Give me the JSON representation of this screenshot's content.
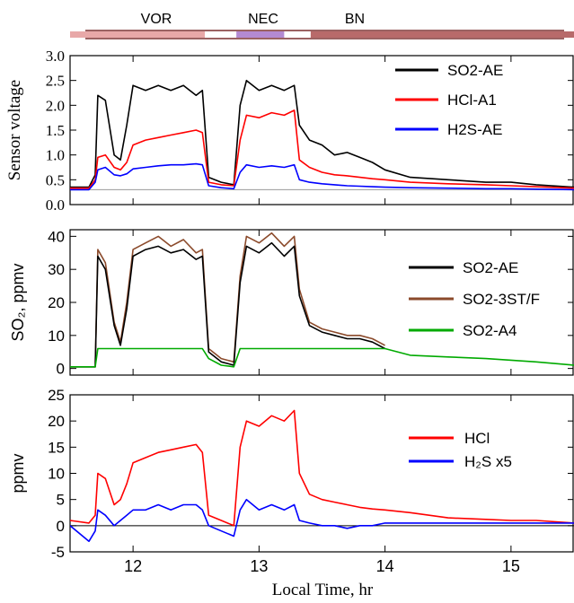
{
  "regions": {
    "labels": [
      "VOR",
      "NEC",
      "BN"
    ],
    "segments": [
      {
        "label": "VOR",
        "from": 11.5,
        "to": 12.57,
        "color": "#e8a8a8"
      },
      {
        "label": "",
        "from": 12.57,
        "to": 12.82,
        "color": "#ffffff"
      },
      {
        "label": "NEC",
        "from": 12.82,
        "to": 13.2,
        "color": "#b48ad2"
      },
      {
        "label": "",
        "from": 13.2,
        "to": 13.41,
        "color": "#ffffff"
      },
      {
        "label": "BN",
        "from": 13.41,
        "to": 15.5,
        "color": "#b86a6a"
      }
    ]
  },
  "chart_data": [
    {
      "type": "line",
      "ylabel": "Sensor voltage",
      "xlim": [
        11.5,
        15.5
      ],
      "ylim": [
        0,
        3.0
      ],
      "yticks": [
        "0.0",
        "0.5",
        "1.0",
        "1.5",
        "2.0",
        "2.5",
        "3.0"
      ],
      "ytick_values": [
        0,
        0.5,
        1.0,
        1.5,
        2.0,
        2.5,
        3.0
      ],
      "reference_line": 0.3,
      "legend_position": "top-right",
      "series": [
        {
          "name": "SO2-AE",
          "color": "#000000",
          "x": [
            11.5,
            11.65,
            11.7,
            11.72,
            11.78,
            11.85,
            11.9,
            11.95,
            12.0,
            12.1,
            12.2,
            12.3,
            12.4,
            12.5,
            12.55,
            12.6,
            12.7,
            12.8,
            12.85,
            12.9,
            13.0,
            13.1,
            13.2,
            13.28,
            13.32,
            13.4,
            13.5,
            13.6,
            13.7,
            13.8,
            13.9,
            14.0,
            14.2,
            14.5,
            14.8,
            15.0,
            15.2,
            15.5
          ],
          "y": [
            0.35,
            0.35,
            0.6,
            2.2,
            2.1,
            1.0,
            0.9,
            1.6,
            2.4,
            2.3,
            2.4,
            2.3,
            2.4,
            2.2,
            2.3,
            0.55,
            0.45,
            0.4,
            2.0,
            2.5,
            2.3,
            2.4,
            2.3,
            2.4,
            1.6,
            1.3,
            1.2,
            1.0,
            1.05,
            0.95,
            0.85,
            0.7,
            0.55,
            0.5,
            0.45,
            0.45,
            0.4,
            0.35
          ]
        },
        {
          "name": "HCl-A1",
          "color": "#ff0000",
          "x": [
            11.5,
            11.65,
            11.7,
            11.72,
            11.78,
            11.85,
            11.9,
            11.95,
            12.0,
            12.1,
            12.2,
            12.3,
            12.4,
            12.5,
            12.55,
            12.6,
            12.7,
            12.8,
            12.85,
            12.9,
            13.0,
            13.1,
            13.2,
            13.28,
            13.32,
            13.4,
            13.5,
            13.6,
            13.7,
            13.8,
            13.9,
            14.0,
            14.2,
            14.5,
            14.8,
            15.0,
            15.2,
            15.5
          ],
          "y": [
            0.33,
            0.33,
            0.5,
            0.95,
            1.0,
            0.75,
            0.7,
            0.85,
            1.2,
            1.3,
            1.35,
            1.4,
            1.45,
            1.5,
            1.45,
            0.45,
            0.4,
            0.38,
            1.3,
            1.8,
            1.75,
            1.85,
            1.8,
            1.9,
            0.9,
            0.75,
            0.65,
            0.6,
            0.58,
            0.55,
            0.52,
            0.5,
            0.45,
            0.42,
            0.4,
            0.38,
            0.36,
            0.33
          ]
        },
        {
          "name": "H2S-AE",
          "color": "#0000ff",
          "x": [
            11.5,
            11.65,
            11.7,
            11.72,
            11.78,
            11.85,
            11.9,
            11.95,
            12.0,
            12.1,
            12.2,
            12.3,
            12.4,
            12.5,
            12.55,
            12.6,
            12.7,
            12.8,
            12.85,
            12.9,
            13.0,
            13.1,
            13.2,
            13.28,
            13.32,
            13.4,
            13.5,
            13.6,
            13.7,
            13.8,
            13.9,
            14.0,
            14.2,
            14.5,
            14.8,
            15.0,
            15.2,
            15.5
          ],
          "y": [
            0.3,
            0.3,
            0.45,
            0.7,
            0.75,
            0.6,
            0.58,
            0.62,
            0.72,
            0.75,
            0.78,
            0.8,
            0.8,
            0.82,
            0.8,
            0.38,
            0.34,
            0.32,
            0.65,
            0.8,
            0.75,
            0.78,
            0.75,
            0.8,
            0.5,
            0.45,
            0.42,
            0.4,
            0.38,
            0.37,
            0.36,
            0.35,
            0.34,
            0.33,
            0.32,
            0.32,
            0.31,
            0.3
          ]
        }
      ]
    },
    {
      "type": "line",
      "ylabel": "SO₂, ppmv",
      "xlim": [
        11.5,
        15.5
      ],
      "ylim": [
        -2,
        42
      ],
      "yticks": [
        "0",
        "10",
        "20",
        "30",
        "40"
      ],
      "ytick_values": [
        0,
        10,
        20,
        30,
        40
      ],
      "legend_position": "right",
      "series": [
        {
          "name": "SO2-3ST/F",
          "color": "#8b4a2b",
          "x": [
            11.5,
            11.7,
            11.72,
            11.78,
            11.85,
            11.9,
            11.95,
            12.0,
            12.1,
            12.2,
            12.3,
            12.4,
            12.5,
            12.55,
            12.6,
            12.7,
            12.8,
            12.85,
            12.9,
            13.0,
            13.1,
            13.2,
            13.28,
            13.32,
            13.4,
            13.5,
            13.6,
            13.7,
            13.8,
            13.9,
            14.0
          ],
          "y": [
            0.5,
            0.5,
            36,
            32,
            14,
            8,
            20,
            36,
            38,
            40,
            37,
            39,
            35,
            36,
            6,
            3,
            2,
            28,
            40,
            38,
            41,
            37,
            40,
            24,
            14,
            12,
            11,
            10,
            10,
            9,
            7
          ]
        },
        {
          "name": "SO2-AE",
          "color": "#000000",
          "x": [
            11.5,
            11.7,
            11.72,
            11.78,
            11.85,
            11.9,
            11.95,
            12.0,
            12.1,
            12.2,
            12.3,
            12.4,
            12.5,
            12.55,
            12.6,
            12.7,
            12.8,
            12.85,
            12.9,
            13.0,
            13.1,
            13.2,
            13.28,
            13.32,
            13.4,
            13.5,
            13.6,
            13.7,
            13.8,
            13.9,
            14.0
          ],
          "y": [
            0.5,
            0.5,
            34,
            30,
            13,
            7,
            18,
            34,
            36,
            37,
            35,
            36,
            33,
            34,
            5,
            2,
            1,
            26,
            37,
            35,
            38,
            34,
            37,
            22,
            13,
            11,
            10,
            9,
            9,
            8,
            6
          ]
        },
        {
          "name": "SO2-A4",
          "color": "#00aa00",
          "x": [
            11.5,
            11.7,
            11.72,
            12.55,
            12.6,
            12.7,
            12.8,
            12.85,
            13.3,
            13.5,
            14.0,
            14.2,
            14.5,
            14.8,
            15.0,
            15.2,
            15.5
          ],
          "y": [
            0.5,
            0.5,
            6,
            6,
            3,
            1,
            0.5,
            6,
            6,
            6,
            6,
            4,
            3.5,
            3,
            2.5,
            2,
            1
          ]
        }
      ]
    },
    {
      "type": "line",
      "ylabel": "ppmv",
      "xlabel": "Local Time, hr",
      "xlim": [
        11.5,
        15.5
      ],
      "ylim": [
        -5,
        25
      ],
      "xticks": [
        "12",
        "13",
        "14",
        "15"
      ],
      "xtick_values": [
        12,
        13,
        14,
        15
      ],
      "yticks": [
        "-5",
        "0",
        "5",
        "10",
        "15",
        "20",
        "25"
      ],
      "ytick_values": [
        -5,
        0,
        5,
        10,
        15,
        20,
        25
      ],
      "reference_line": 0,
      "legend_position": "right",
      "series": [
        {
          "name": "HCl",
          "color": "#ff0000",
          "x": [
            11.5,
            11.65,
            11.7,
            11.72,
            11.78,
            11.85,
            11.9,
            11.95,
            12.0,
            12.1,
            12.2,
            12.3,
            12.4,
            12.5,
            12.55,
            12.6,
            12.7,
            12.8,
            12.85,
            12.9,
            13.0,
            13.1,
            13.2,
            13.28,
            13.32,
            13.4,
            13.5,
            13.6,
            13.7,
            13.8,
            13.9,
            14.0,
            14.2,
            14.5,
            14.8,
            15.0,
            15.2,
            15.5
          ],
          "y": [
            1,
            0.5,
            2,
            10,
            9,
            4,
            5,
            8,
            12,
            13,
            14,
            14.5,
            15,
            15.5,
            14,
            2,
            1,
            0,
            15,
            20,
            19,
            21,
            20,
            22,
            10,
            6,
            5,
            4.5,
            4,
            3.5,
            3.2,
            3,
            2.5,
            1.5,
            1.2,
            1,
            1,
            0.5
          ]
        },
        {
          "name": "H₂S x5",
          "color": "#0000ff",
          "x": [
            11.5,
            11.65,
            11.7,
            11.72,
            11.78,
            11.85,
            11.9,
            11.95,
            12.0,
            12.1,
            12.2,
            12.3,
            12.4,
            12.5,
            12.55,
            12.6,
            12.7,
            12.8,
            12.85,
            12.9,
            13.0,
            13.1,
            13.2,
            13.28,
            13.32,
            13.4,
            13.5,
            13.6,
            13.7,
            13.8,
            13.9,
            14.0,
            14.2,
            14.5,
            14.8,
            15.0,
            15.2,
            15.5
          ],
          "y": [
            0,
            -3,
            -1,
            3,
            2,
            0,
            1,
            2,
            3,
            3,
            4,
            3,
            4,
            4,
            3,
            0,
            -1,
            -2,
            3,
            5,
            3,
            4,
            3,
            4,
            1,
            0.5,
            0,
            0,
            -0.5,
            0,
            0,
            0.5,
            0.5,
            0.5,
            0.5,
            0.5,
            0.5,
            0.5
          ]
        }
      ]
    }
  ]
}
